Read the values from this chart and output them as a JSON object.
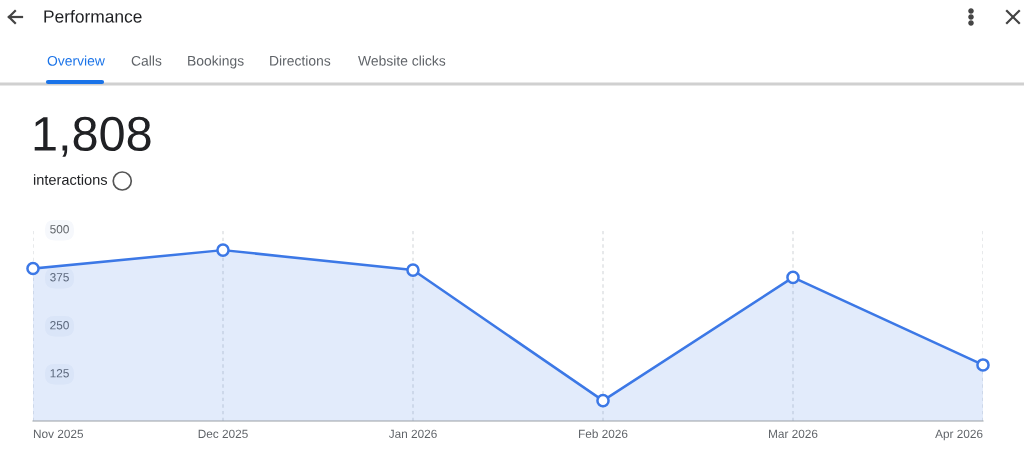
{
  "chart_data": {
    "type": "area",
    "title": "Performance",
    "annotations": [
      "Overview",
      "Calls",
      "Bookings",
      "Directions",
      "Website clicks",
      "1,808",
      "interactions"
    ],
    "categories": [
      "Nov 2025",
      "Dec 2025",
      "Jan 2026",
      "Feb 2026",
      "Mar 2026",
      "Apr 2026"
    ],
    "series": [
      {
        "color": "#3c78e6",
        "values": [
          397,
          445,
          393,
          53,
          374,
          146
        ]
      }
    ],
    "ylim": [
      0,
      500
    ],
    "yticks": [
      125,
      250,
      375,
      500
    ],
    "grid": "x",
    "marker": "circle",
    "line_style": "solid"
  }
}
